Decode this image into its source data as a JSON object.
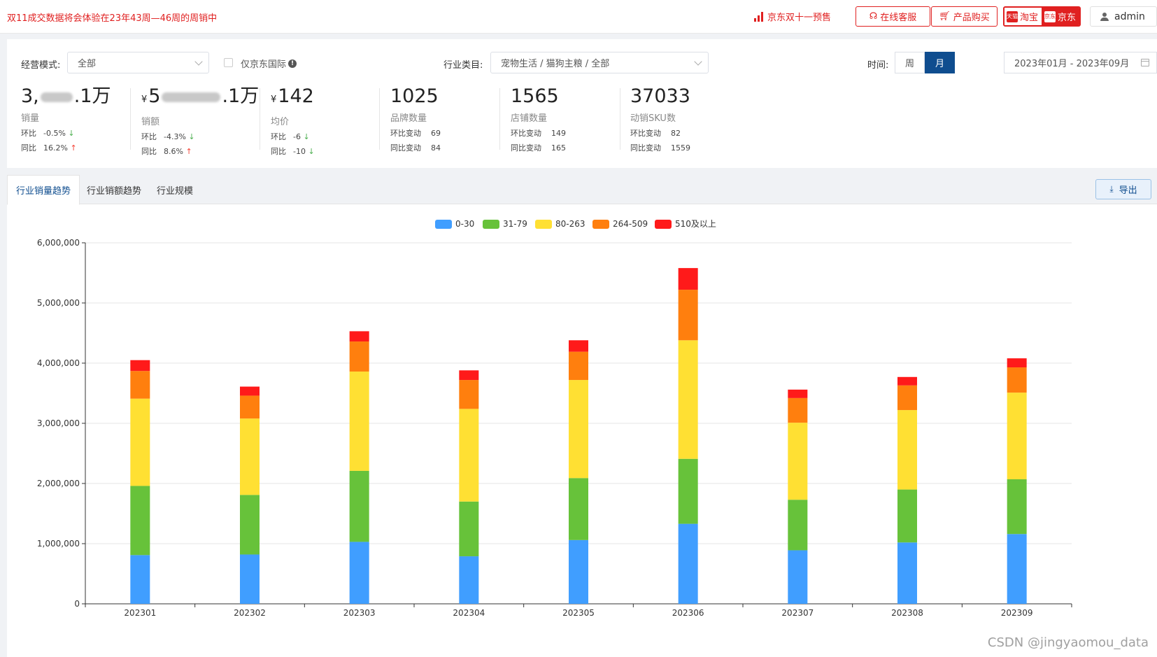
{
  "topbar": {
    "notice": "双11成交数据将会体验在23年43周—46周的周销中",
    "jd_promo": "京东双十一预售",
    "service_btn": "在线客服",
    "buy_btn": "产品购买",
    "taobao": "淘宝",
    "jd": "京东",
    "tmall_badge": "天猫",
    "jd_badge": "京东",
    "user": "admin"
  },
  "filters": {
    "mode_label": "经营模式:",
    "mode_value": "全部",
    "jd_intl_label": "仅京东国际",
    "industry_label": "行业类目:",
    "industry_value": "宠物生活 / 猫狗主粮 / 全部",
    "time_label": "时间:",
    "week": "周",
    "month": "月",
    "date_range": "2023年01月 - 2023年09月"
  },
  "stats": [
    {
      "value_prefix": "3,",
      "value_suffix": ".1万",
      "currency": "",
      "name": "销量",
      "r1k": "环比",
      "r1v": "-0.5%",
      "r1dir": "↓",
      "r2k": "同比",
      "r2v": "16.2%",
      "r2dir": "↑"
    },
    {
      "value_prefix": "5",
      "value_suffix": ".1万",
      "currency": "¥",
      "name": "销额",
      "r1k": "环比",
      "r1v": "-4.3%",
      "r1dir": "↓",
      "r2k": "同比",
      "r2v": "8.6%",
      "r2dir": "↑"
    },
    {
      "value_prefix": "142",
      "value_suffix": "",
      "currency": "¥",
      "name": "均价",
      "r1k": "环比",
      "r1v": "-6",
      "r1dir": "↓",
      "r2k": "同比",
      "r2v": "-10",
      "r2dir": "↓"
    },
    {
      "value_prefix": "1025",
      "value_suffix": "",
      "currency": "",
      "name": "品牌数量",
      "r1k": "环比变动",
      "r1v": "69",
      "r1dir": "",
      "r2k": "同比变动",
      "r2v": "84",
      "r2dir": ""
    },
    {
      "value_prefix": "1565",
      "value_suffix": "",
      "currency": "",
      "name": "店铺数量",
      "r1k": "环比变动",
      "r1v": "149",
      "r1dir": "",
      "r2k": "同比变动",
      "r2v": "165",
      "r2dir": ""
    },
    {
      "value_prefix": "37033",
      "value_suffix": "",
      "currency": "",
      "name": "动销SKU数",
      "r1k": "环比变动",
      "r1v": "82",
      "r1dir": "",
      "r2k": "同比变动",
      "r2v": "1559",
      "r2dir": ""
    }
  ],
  "tabs": [
    "行业销量趋势",
    "行业销额趋势",
    "行业规模"
  ],
  "export_label": "导出",
  "watermark": "CSDN @jingyaomou_data",
  "colors": {
    "brand_red": "#e02020",
    "brand_blue": "#0f4d8f"
  },
  "chart_data": {
    "type": "bar",
    "stacked": true,
    "categories": [
      "202301",
      "202302",
      "202303",
      "202304",
      "202305",
      "202306",
      "202307",
      "202308",
      "202309"
    ],
    "series": [
      {
        "name": "0-30",
        "color": "#409eff",
        "values": [
          810000,
          820000,
          1030000,
          790000,
          1060000,
          1330000,
          890000,
          1020000,
          1160000
        ]
      },
      {
        "name": "31-79",
        "color": "#67c23a",
        "values": [
          1150000,
          990000,
          1180000,
          910000,
          1030000,
          1080000,
          840000,
          880000,
          910000
        ]
      },
      {
        "name": "80-263",
        "color": "#ffe033",
        "values": [
          1450000,
          1270000,
          1650000,
          1540000,
          1630000,
          1970000,
          1280000,
          1320000,
          1440000
        ]
      },
      {
        "name": "264-509",
        "color": "#ff7f0e",
        "values": [
          460000,
          380000,
          500000,
          480000,
          470000,
          840000,
          410000,
          410000,
          420000
        ]
      },
      {
        "name": "510及以上",
        "color": "#ff1a1a",
        "values": [
          180000,
          150000,
          170000,
          160000,
          190000,
          360000,
          140000,
          140000,
          150000
        ]
      }
    ],
    "ylim": [
      0,
      6000000
    ],
    "yticks": [
      "0",
      "1,000,000",
      "2,000,000",
      "3,000,000",
      "4,000,000",
      "5,000,000",
      "6,000,000"
    ],
    "grid": true,
    "legend_position": "top-center"
  }
}
